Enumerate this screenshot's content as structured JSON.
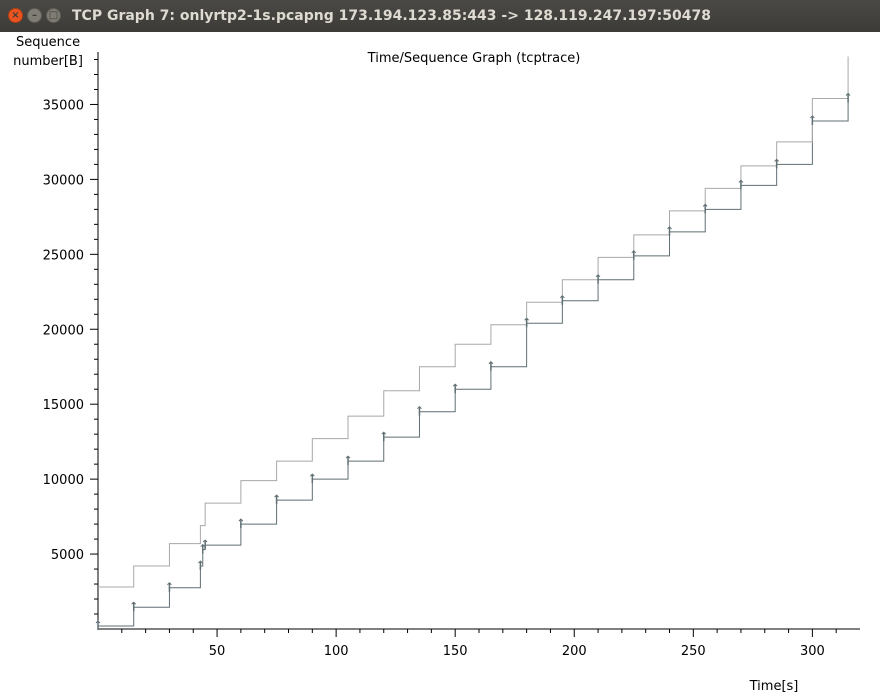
{
  "window": {
    "title": "TCP Graph 7: onlyrtp2-1s.pcapng 173.194.123.85:443 -> 128.119.247.197:50478",
    "close_glyph": "×",
    "minimize_glyph": "–",
    "maximize_glyph": "□"
  },
  "chart_data": {
    "type": "line",
    "title": "Time/Sequence Graph (tcptrace)",
    "ylabel_line1": "Sequence",
    "ylabel_line2": "number[B]",
    "xlabel": "Time[s]",
    "xlim": [
      0,
      320
    ],
    "ylim": [
      0,
      38500
    ],
    "x_ticks": [
      50,
      100,
      150,
      200,
      250,
      300
    ],
    "y_ticks": [
      5000,
      10000,
      15000,
      20000,
      25000,
      30000,
      35000
    ],
    "grid": false,
    "series": [
      {
        "role": "data-segments",
        "color": "#5f6f73",
        "x": [
          0,
          15,
          30,
          43,
          44,
          45,
          60,
          75,
          90,
          105,
          120,
          135,
          150,
          165,
          180,
          195,
          210,
          225,
          240,
          255,
          270,
          285,
          300,
          315
        ],
        "y": [
          200,
          1450,
          2750,
          4200,
          5300,
          5600,
          7000,
          8600,
          10000,
          11200,
          12800,
          14500,
          16000,
          17500,
          20400,
          21900,
          23300,
          24900,
          26500,
          28000,
          29600,
          31000,
          33900,
          35400
        ]
      },
      {
        "role": "receive-window",
        "color": "#a8a8a8",
        "x": [
          0,
          15,
          30,
          43,
          45,
          60,
          75,
          90,
          105,
          120,
          135,
          150,
          165,
          180,
          195,
          210,
          225,
          240,
          255,
          270,
          285,
          300,
          315
        ],
        "y": [
          2800,
          4200,
          5700,
          6900,
          8400,
          9900,
          11200,
          12700,
          14200,
          15900,
          17500,
          19000,
          20300,
          21800,
          23300,
          24800,
          26300,
          27900,
          29400,
          30900,
          32500,
          35400,
          38200
        ]
      }
    ]
  }
}
